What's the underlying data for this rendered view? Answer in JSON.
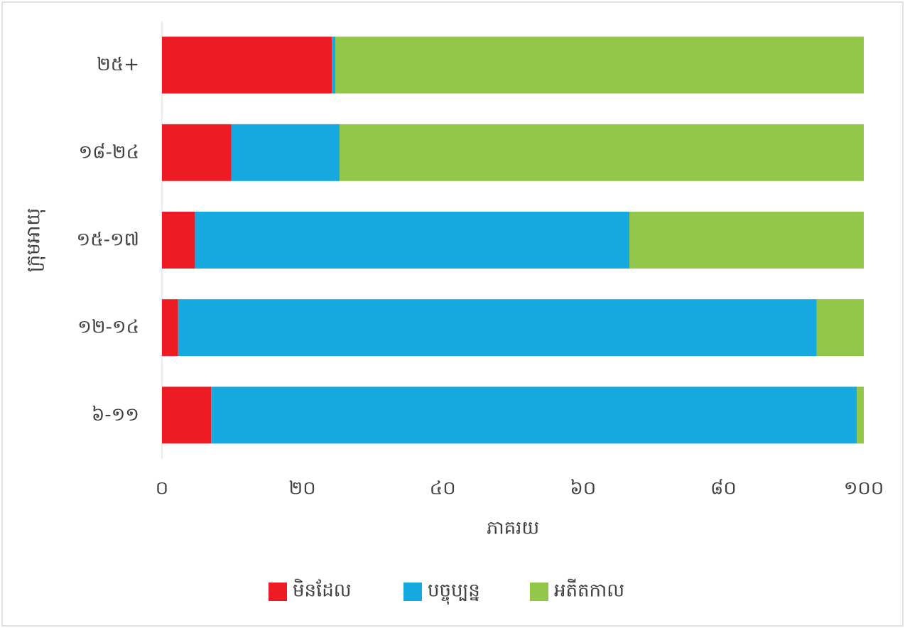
{
  "chart_data": {
    "type": "stacked_barh",
    "xlabel": "ភាគរយ",
    "ylabel": "ក្រុមអាយុ",
    "categories": [
      "៦-១១",
      "១២-១៤",
      "១៥-១៧",
      "១៨-២៤",
      "២៥+"
    ],
    "series": [
      {
        "name": "មិនដែល",
        "color": "#ed1c24",
        "values": [
          7.0,
          2.3,
          4.7,
          9.9,
          24.2
        ]
      },
      {
        "name": "បច្ចុប្បន្ន",
        "color": "#15a9e0",
        "values": [
          92.0,
          91.0,
          61.9,
          15.4,
          0.5
        ]
      },
      {
        "name": "អតីតកាល",
        "color": "#92c74a",
        "values": [
          1.0,
          6.7,
          33.4,
          74.7,
          75.3
        ]
      }
    ],
    "xlim": [
      0,
      100
    ],
    "xticks": [
      {
        "value": 0,
        "label": "០"
      },
      {
        "value": 20,
        "label": "២០"
      },
      {
        "value": 40,
        "label": "៤០"
      },
      {
        "value": 60,
        "label": "៦០"
      },
      {
        "value": 80,
        "label": "៨០"
      },
      {
        "value": 100,
        "label": "១០០"
      }
    ],
    "legend": "bottom"
  }
}
